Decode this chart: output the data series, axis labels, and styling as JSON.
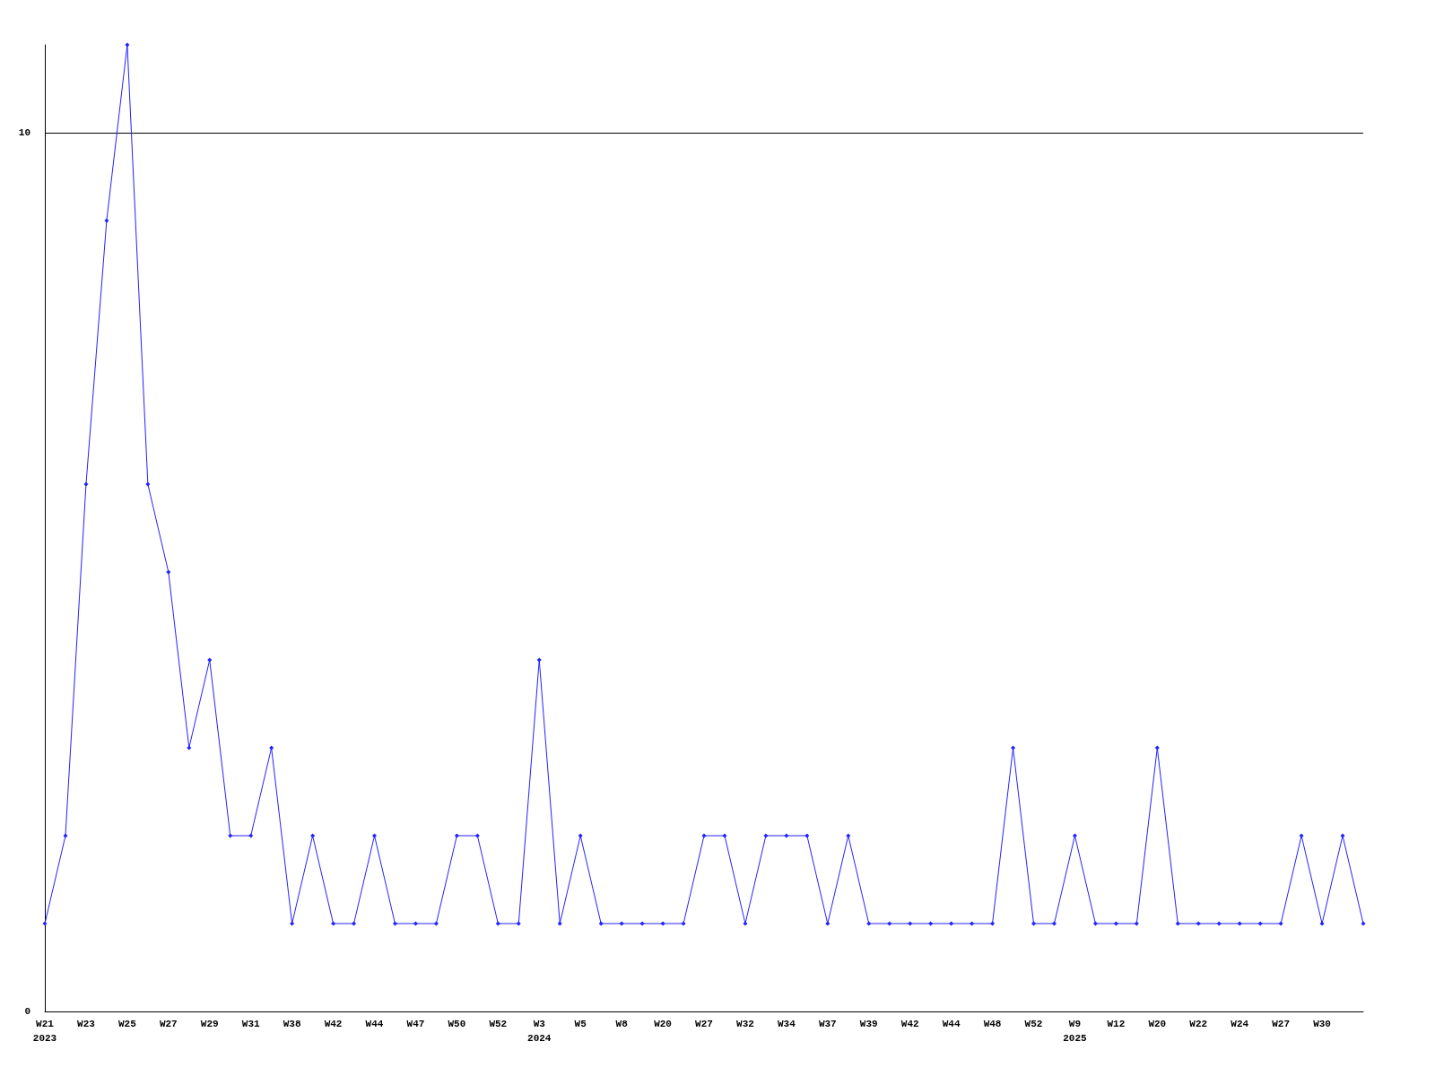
{
  "chart_data": {
    "type": "line",
    "categories": [
      "W21\n2023",
      null,
      "W23",
      null,
      "W25",
      null,
      "W27",
      null,
      "W29",
      null,
      "W31",
      null,
      "W38",
      null,
      "W42",
      null,
      "W44",
      null,
      "W47",
      null,
      "W50",
      null,
      "W52",
      null,
      "W3\n2024",
      null,
      "W5",
      null,
      "W8",
      null,
      "W20",
      null,
      "W27",
      null,
      "W32",
      null,
      "W34",
      null,
      "W37",
      null,
      "W39",
      null,
      "W42",
      null,
      "W44",
      null,
      "W48",
      null,
      "W52",
      null,
      "W9\n2025",
      null,
      "W12",
      null,
      "W20",
      null,
      "W22",
      null,
      "W24",
      null,
      "W27",
      null,
      "W30",
      null,
      null
    ],
    "series": [
      {
        "color": "#2222ff",
        "values": [
          1,
          2,
          6,
          9,
          11,
          6,
          5,
          3,
          4,
          2,
          2,
          3,
          1,
          2,
          1,
          1,
          2,
          1,
          1,
          1,
          2,
          2,
          1,
          1,
          4,
          1,
          2,
          1,
          1,
          1,
          1,
          1,
          2,
          2,
          1,
          2,
          2,
          2,
          1,
          2,
          1,
          1,
          1,
          1,
          1,
          1,
          1,
          3,
          1,
          1,
          2,
          1,
          1,
          1,
          3,
          1,
          1,
          1,
          1,
          1,
          1,
          2,
          1,
          2,
          1
        ]
      }
    ],
    "ylim": [
      0,
      11
    ],
    "yticks": [
      0,
      10
    ],
    "grid": "y",
    "marker": "diamond",
    "line_style": "solid"
  }
}
